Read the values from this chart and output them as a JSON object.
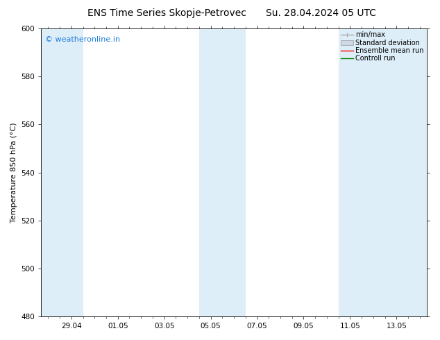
{
  "title_left": "ENS Time Series Skopje-Petrovec",
  "title_right": "Su. 28.04.2024 05 UTC",
  "ylabel": "Temperature 850 hPa (°C)",
  "ylim": [
    480,
    600
  ],
  "yticks": [
    480,
    500,
    520,
    540,
    560,
    580,
    600
  ],
  "xtick_labels": [
    "29.04",
    "01.05",
    "03.05",
    "05.05",
    "07.05",
    "09.05",
    "11.05",
    "13.05"
  ],
  "xtick_positions": [
    1,
    3,
    5,
    7,
    9,
    11,
    13,
    15
  ],
  "xlim": [
    -0.3,
    16.3
  ],
  "shaded_bands": [
    {
      "xmin": -0.3,
      "xmax": 1.5,
      "color": "#ddeef8"
    },
    {
      "xmin": 6.5,
      "xmax": 8.5,
      "color": "#ddeef8"
    },
    {
      "xmin": 12.5,
      "xmax": 16.3,
      "color": "#ddeef8"
    }
  ],
  "watermark_text": "© weatheronline.in",
  "watermark_color": "#1a7adc",
  "legend_items": [
    {
      "label": "min/max",
      "color": "#aaaaaa",
      "type": "minmax"
    },
    {
      "label": "Standard deviation",
      "color": "#ccccdd",
      "type": "stddev"
    },
    {
      "label": "Ensemble mean run",
      "color": "#ff0000",
      "type": "line"
    },
    {
      "label": "Controll run",
      "color": "#008000",
      "type": "line"
    }
  ],
  "bg_color": "#ffffff",
  "plot_bg_color": "#ffffff",
  "title_fontsize": 10,
  "axis_label_fontsize": 8,
  "tick_fontsize": 7.5,
  "legend_fontsize": 7,
  "watermark_fontsize": 8
}
